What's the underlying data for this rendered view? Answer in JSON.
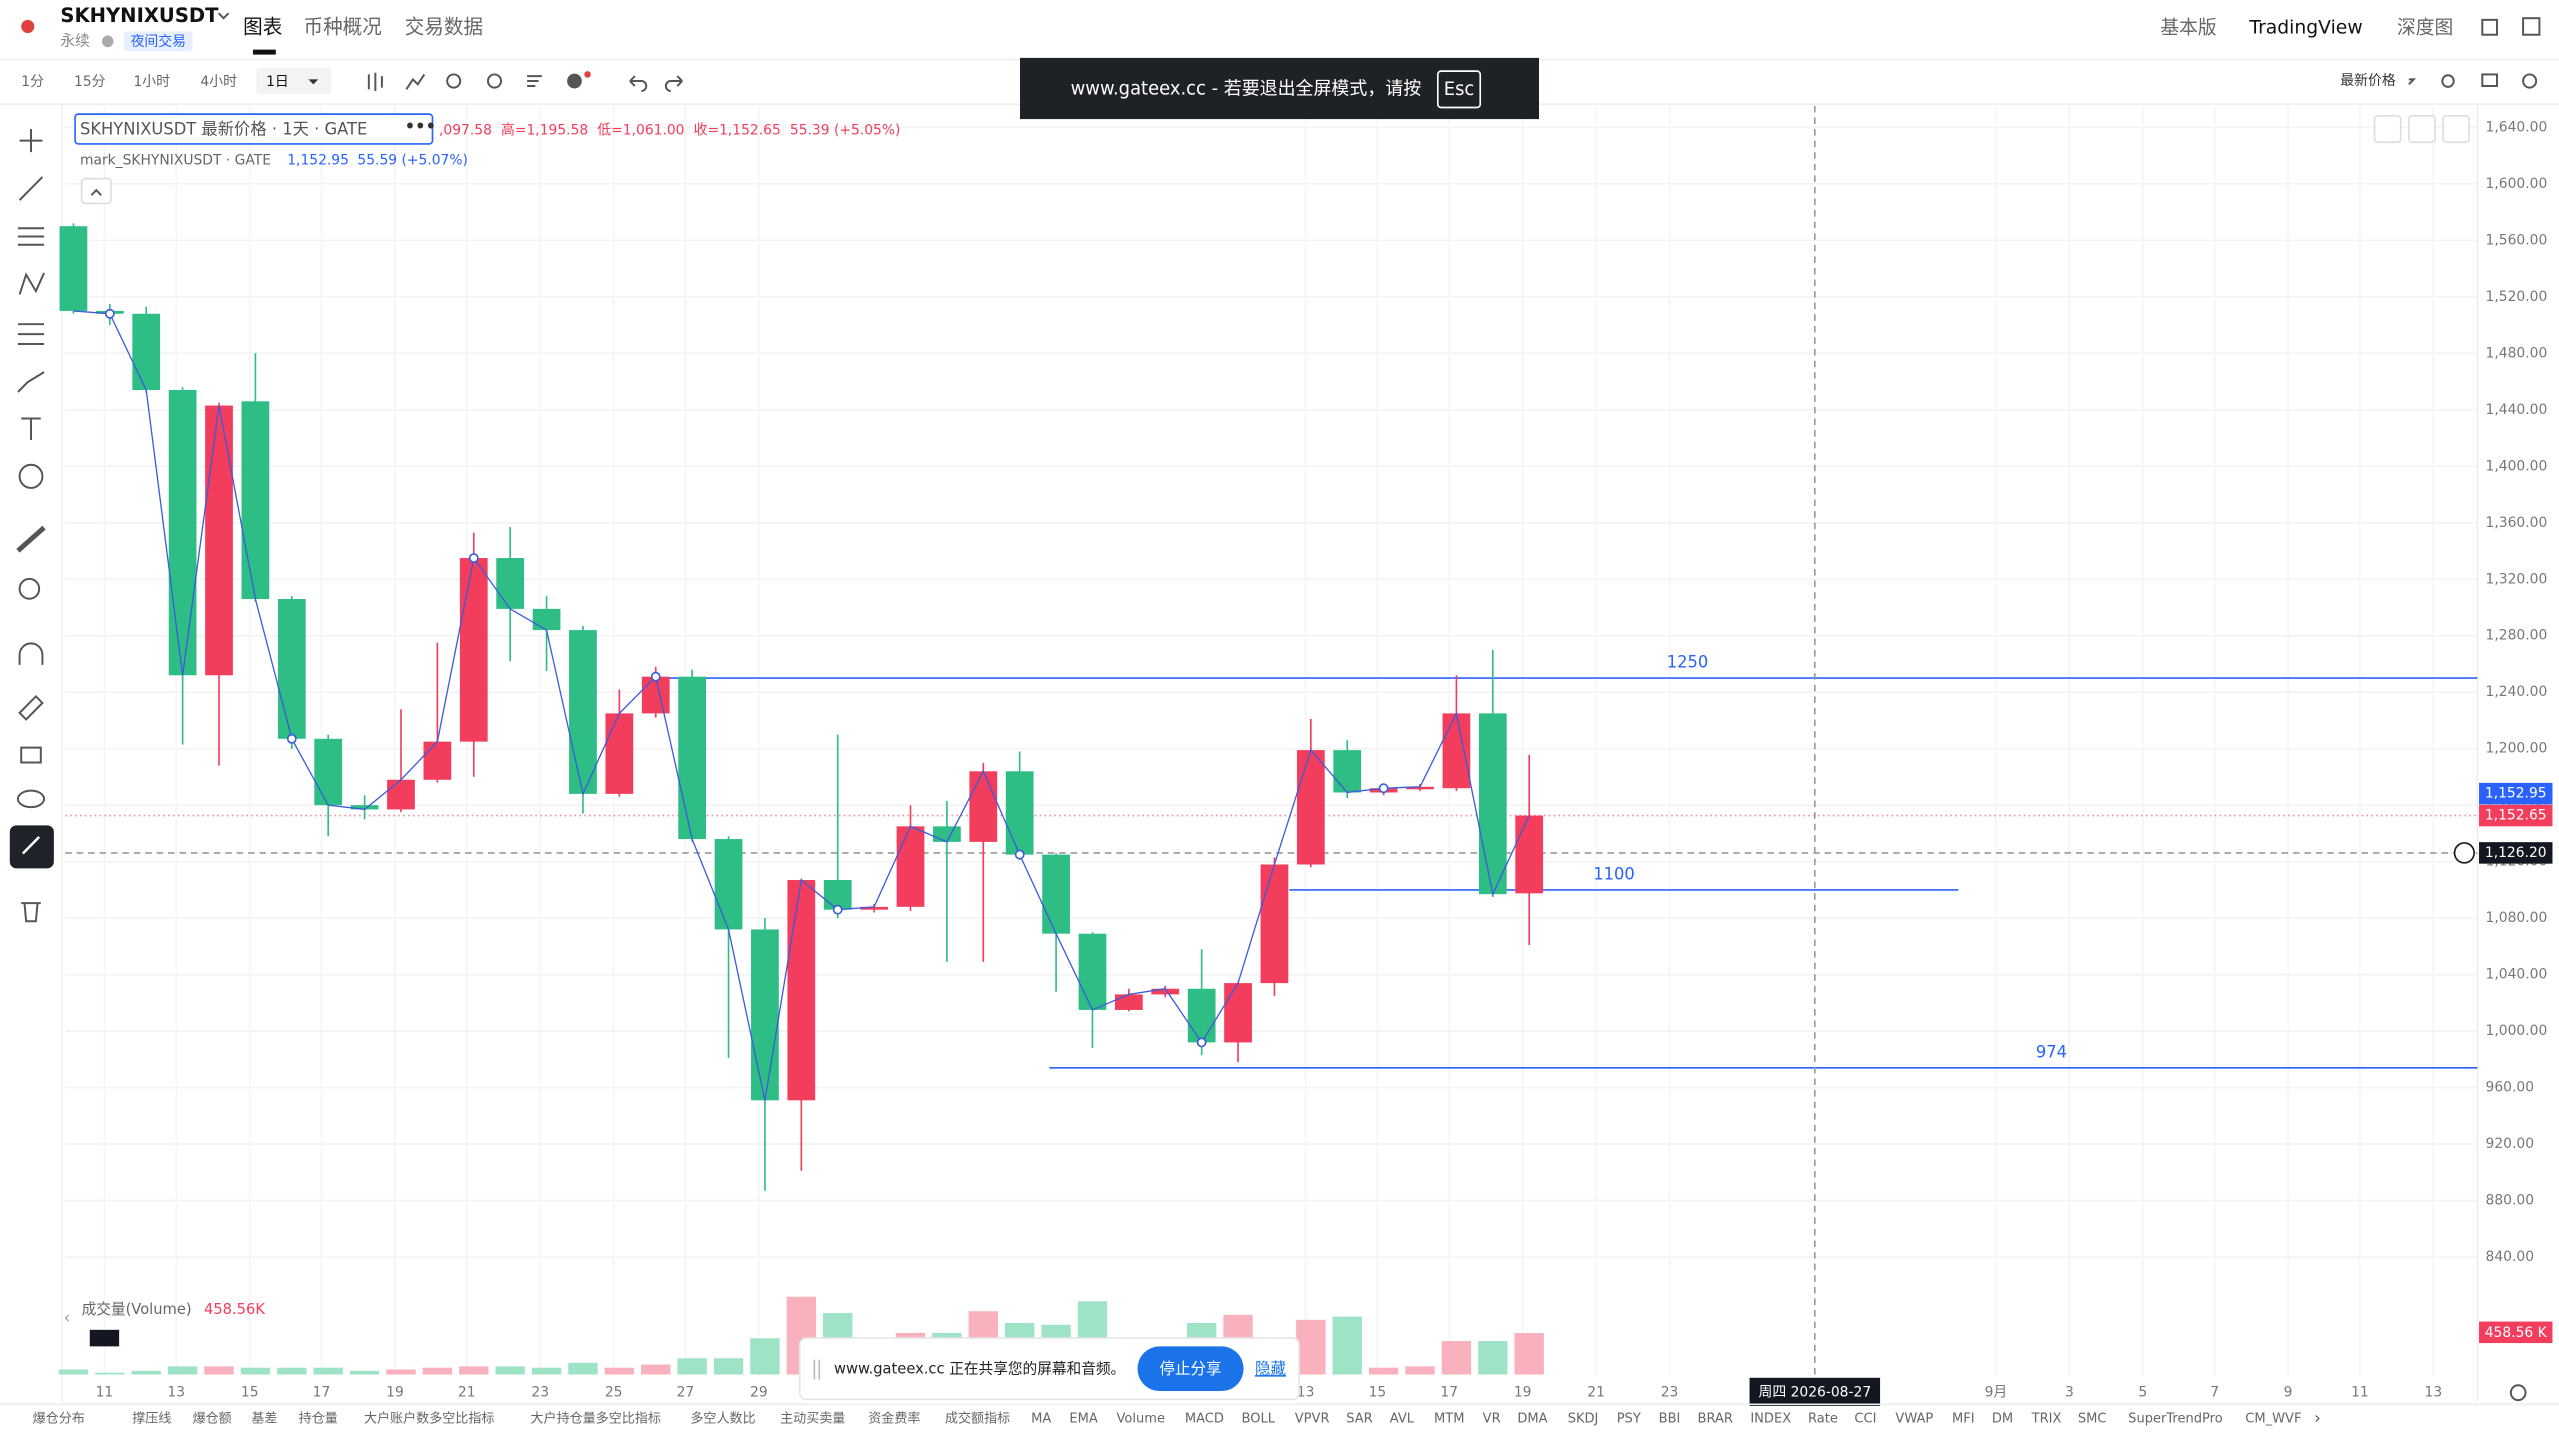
{
  "header": {
    "symbol": "SKHYNIXUSDT",
    "contract": "永续",
    "badge": "夜间交易",
    "tabs": [
      "图表",
      "币种概况",
      "交易数据"
    ],
    "right_tabs": [
      "基本版",
      "TradingView",
      "深度图"
    ]
  },
  "toolbar": {
    "intervals": [
      "1分",
      "15分",
      "1小时",
      "4小时",
      "1日"
    ],
    "price_type": "最新价格"
  },
  "banner": {
    "text": "www.gateex.cc - 若要退出全屏模式，请按",
    "key": "Esc"
  },
  "legend": {
    "title": "SKHYNIXUSDT 最新价格 · 1天 · GATE",
    "open": ",097.58",
    "high": "高=1,195.58",
    "low": "低=1,061.00",
    "close": "收=1,152.65",
    "change": "55.39 (+5.05%)",
    "mark_title": "mark_SKHYNIXUSDT · GATE",
    "mark_value": "1,152.95",
    "mark_change": "55.59 (+5.07%)"
  },
  "price_axis": {
    "lim": [
      840,
      1640
    ],
    "ticks": [
      {
        "value": 1640,
        "label": "1,640.00"
      },
      {
        "value": 1600,
        "label": "1,600.00"
      },
      {
        "value": 1560,
        "label": "1,560.00"
      },
      {
        "value": 1520,
        "label": "1,520.00"
      },
      {
        "value": 1480,
        "label": "1,480.00"
      },
      {
        "value": 1440,
        "label": "1,440.00"
      },
      {
        "value": 1400,
        "label": "1,400.00"
      },
      {
        "value": 1360,
        "label": "1,360.00"
      },
      {
        "value": 1320,
        "label": "1,320.00"
      },
      {
        "value": 1280,
        "label": "1,280.00"
      },
      {
        "value": 1240,
        "label": "1,240.00"
      },
      {
        "value": 1200,
        "label": "1,200.00"
      },
      {
        "value": 1160,
        "label": "1,160.00"
      },
      {
        "value": 1120,
        "label": "1,120.00"
      },
      {
        "value": 1080,
        "label": "1,080.00"
      },
      {
        "value": 1040,
        "label": "1,040.00"
      },
      {
        "value": 1000,
        "label": "1,000.00"
      },
      {
        "value": 960,
        "label": "960.00"
      },
      {
        "value": 920,
        "label": "920.00"
      },
      {
        "value": 880,
        "label": "880.00"
      },
      {
        "value": 840,
        "label": "840.00"
      }
    ]
  },
  "price_tags": [
    {
      "value": 1152.95,
      "label": "1,152.95",
      "color": "#2962ff"
    },
    {
      "value": 1152.65,
      "label": "1,152.65",
      "color": "#f23d5c"
    },
    {
      "value": 1126.2,
      "label": "1,126.20",
      "color": "#131722"
    }
  ],
  "levels": [
    1250,
    1100,
    974
  ],
  "candles": [
    {
      "o": 1570,
      "h": 1572,
      "l": 1508,
      "c": 1510,
      "v": 55
    },
    {
      "o": 1510,
      "h": 1515,
      "l": 1500,
      "c": 1508,
      "v": 20
    },
    {
      "o": 1508,
      "h": 1513,
      "l": 1452,
      "c": 1454,
      "v": 40
    },
    {
      "o": 1454,
      "h": 1456,
      "l": 1203,
      "c": 1252,
      "v": 90
    },
    {
      "o": 1252,
      "h": 1445,
      "l": 1188,
      "c": 1443,
      "v": 90
    },
    {
      "o": 1446,
      "h": 1480,
      "l": 1304,
      "c": 1306,
      "v": 75
    },
    {
      "o": 1306,
      "h": 1308,
      "l": 1200,
      "c": 1207,
      "v": 75
    },
    {
      "o": 1207,
      "h": 1210,
      "l": 1138,
      "c": 1160,
      "v": 75
    },
    {
      "o": 1160,
      "h": 1167,
      "l": 1150,
      "c": 1157,
      "v": 40
    },
    {
      "o": 1157,
      "h": 1228,
      "l": 1155,
      "c": 1178,
      "v": 55
    },
    {
      "o": 1178,
      "h": 1275,
      "l": 1176,
      "c": 1205,
      "v": 75
    },
    {
      "o": 1205,
      "h": 1353,
      "l": 1180,
      "c": 1335,
      "v": 90
    },
    {
      "o": 1335,
      "h": 1357,
      "l": 1262,
      "c": 1299,
      "v": 90
    },
    {
      "o": 1299,
      "h": 1308,
      "l": 1255,
      "c": 1284,
      "v": 75
    },
    {
      "o": 1284,
      "h": 1287,
      "l": 1154,
      "c": 1168,
      "v": 130
    },
    {
      "o": 1168,
      "h": 1242,
      "l": 1166,
      "c": 1225,
      "v": 75
    },
    {
      "o": 1225,
      "h": 1258,
      "l": 1222,
      "c": 1251,
      "v": 110
    },
    {
      "o": 1251,
      "h": 1256,
      "l": 1134,
      "c": 1136,
      "v": 180
    },
    {
      "o": 1136,
      "h": 1138,
      "l": 981,
      "c": 1072,
      "v": 180
    },
    {
      "o": 1072,
      "h": 1080,
      "l": 887,
      "c": 951,
      "v": 400
    },
    {
      "o": 951,
      "h": 1108,
      "l": 901,
      "c": 1107,
      "v": 860
    },
    {
      "o": 1107,
      "h": 1210,
      "l": 1080,
      "c": 1086,
      "v": 680
    },
    {
      "o": 1086,
      "h": 1090,
      "l": 1084,
      "c": 1088,
      "v": 100
    },
    {
      "o": 1088,
      "h": 1160,
      "l": 1085,
      "c": 1145,
      "v": 460
    },
    {
      "o": 1145,
      "h": 1163,
      "l": 1049,
      "c": 1134,
      "v": 460
    },
    {
      "o": 1134,
      "h": 1190,
      "l": 1049,
      "c": 1184,
      "v": 700
    },
    {
      "o": 1184,
      "h": 1198,
      "l": 1121,
      "c": 1125,
      "v": 570
    },
    {
      "o": 1125,
      "h": 1126,
      "l": 1028,
      "c": 1069,
      "v": 550
    },
    {
      "o": 1069,
      "h": 1070,
      "l": 988,
      "c": 1015,
      "v": 810
    },
    {
      "o": 1015,
      "h": 1030,
      "l": 1014,
      "c": 1026,
      "v": 90
    },
    {
      "o": 1026,
      "h": 1032,
      "l": 1024,
      "c": 1030,
      "v": 90
    },
    {
      "o": 1030,
      "h": 1058,
      "l": 983,
      "c": 992,
      "v": 570
    },
    {
      "o": 992,
      "h": 1035,
      "l": 978,
      "c": 1034,
      "v": 660
    },
    {
      "o": 1034,
      "h": 1123,
      "l": 1025,
      "c": 1118,
      "v": 75
    },
    {
      "o": 1118,
      "h": 1221,
      "l": 1116,
      "c": 1199,
      "v": 605
    },
    {
      "o": 1199,
      "h": 1206,
      "l": 1165,
      "c": 1169,
      "v": 640
    },
    {
      "o": 1169,
      "h": 1174,
      "l": 1167,
      "c": 1172,
      "v": 75
    },
    {
      "o": 1172,
      "h": 1175,
      "l": 1170,
      "c": 1173,
      "v": 90
    },
    {
      "o": 1172,
      "h": 1252,
      "l": 1170,
      "c": 1225,
      "v": 370
    },
    {
      "o": 1225,
      "h": 1270,
      "l": 1095,
      "c": 1097,
      "v": 370
    },
    {
      "o": 1097.58,
      "h": 1195.58,
      "l": 1061,
      "c": 1152.65,
      "v": 458.56
    }
  ],
  "volume": {
    "title": "成交量(Volume)",
    "value": "458.56K",
    "tag": "458.56 K"
  },
  "x_labels": [
    "11",
    "13",
    "15",
    "17",
    "19",
    "21",
    "23",
    "25",
    "27",
    "29",
    "13",
    "15",
    "17",
    "19",
    "21",
    "23",
    "9月",
    "3",
    "5",
    "7",
    "9",
    "11",
    "13"
  ],
  "crosshair_date": "周四 2026-08-27",
  "indicators": [
    "爆仓分布",
    "撑压线",
    "爆仓额",
    "基差",
    "持仓量",
    "大户账户数多空比指标",
    "大户持仓量多空比指标",
    "多空人数比",
    "主动买卖量",
    "资金费率",
    "成交额指标",
    "MA",
    "EMA",
    "Volume",
    "MACD",
    "BOLL",
    "VPVR",
    "SAR",
    "AVL",
    "MTM",
    "VR",
    "DMA",
    "SKDJ",
    "PSY",
    "BBI",
    "BRAR",
    "INDEX",
    "Rate",
    "CCI",
    "VWAP",
    "MFI",
    "DM",
    "TRIX",
    "SMC",
    "SuperTrendPro",
    "CM_WVF"
  ],
  "share_bar": {
    "text": "www.gateex.cc 正在共享您的屏幕和音频。",
    "stop": "停止分享",
    "hide": "隐藏"
  }
}
